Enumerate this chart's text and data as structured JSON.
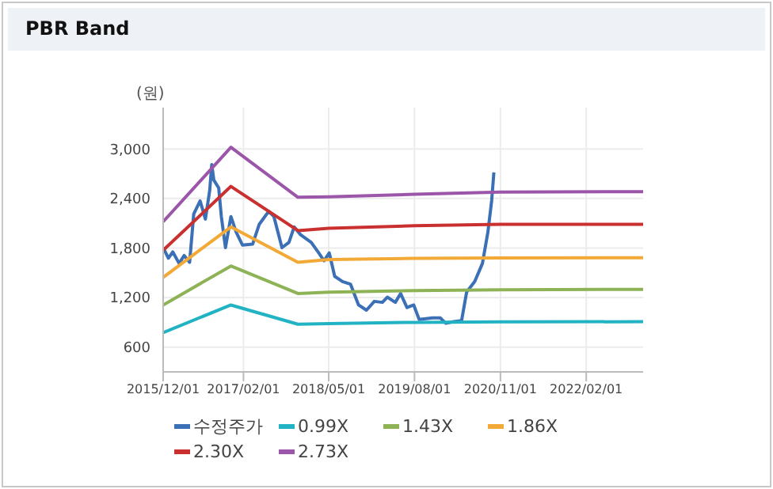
{
  "chart_data": {
    "type": "line",
    "title": "PBR Band",
    "ylabel": "(원)",
    "xlim": [
      "2015-12-01",
      "2022-12-01"
    ],
    "xticks": [
      {
        "value": "2015-12-01",
        "label": "2015/12/01"
      },
      {
        "value": "2017-02-01",
        "label": "2017/02/01"
      },
      {
        "value": "2018-05-01",
        "label": "2018/05/01"
      },
      {
        "value": "2019-08-01",
        "label": "2019/08/01"
      },
      {
        "value": "2020-11-01",
        "label": "2020/11/01"
      },
      {
        "value": "2022-02-01",
        "label": "2022/02/01"
      }
    ],
    "ylim": [
      300,
      3500
    ],
    "yticks": [
      600,
      {
        "value": 1200,
        "label": "1,200"
      },
      {
        "value": 1800,
        "label": "1,800"
      },
      {
        "value": 2400,
        "label": "2,400"
      },
      {
        "value": 3000,
        "label": "3,000"
      }
    ],
    "grid": true,
    "legend": "bottom",
    "marker": "none",
    "line_style": "solid",
    "series": [
      {
        "name": "수정주가",
        "color": "#3b6fb6",
        "x": [
          "2015-12-01",
          "2015-12-29",
          "2016-01-21",
          "2016-02-24",
          "2016-03-22",
          "2016-04-20",
          "2016-05-12",
          "2016-06-15",
          "2016-07-13",
          "2016-08-05",
          "2016-08-16",
          "2016-08-27",
          "2016-09-22",
          "2016-10-06",
          "2016-10-28",
          "2016-11-26",
          "2016-12-24",
          "2017-01-27",
          "2017-03-22",
          "2017-04-26",
          "2017-06-15",
          "2017-07-13",
          "2017-08-25",
          "2017-10-01",
          "2017-10-29",
          "2017-12-02",
          "2018-01-28",
          "2018-03-09",
          "2018-04-06",
          "2018-05-04",
          "2018-06-02",
          "2018-07-14",
          "2018-08-25",
          "2018-10-07",
          "2018-11-18",
          "2018-12-30",
          "2019-02-11",
          "2019-03-09",
          "2019-04-21",
          "2019-05-19",
          "2019-06-22",
          "2019-07-28",
          "2019-08-26",
          "2019-11-05",
          "2019-12-17",
          "2020-01-14",
          "2020-02-26",
          "2020-04-08",
          "2020-05-05",
          "2020-06-17",
          "2020-07-28",
          "2020-08-26",
          "2020-09-15",
          "2020-09-27"
        ],
        "values": [
          1804,
          1677,
          1753,
          1614,
          1709,
          1627,
          2213,
          2370,
          2150,
          2496,
          2811,
          2622,
          2527,
          2181,
          1804,
          2181,
          1992,
          1835,
          1848,
          2087,
          2244,
          2181,
          1804,
          1867,
          2055,
          1961,
          1867,
          1740,
          1646,
          1740,
          1457,
          1394,
          1363,
          1110,
          1047,
          1154,
          1142,
          1205,
          1142,
          1249,
          1079,
          1110,
          934,
          953,
          953,
          890,
          908,
          921,
          1268,
          1394,
          1614,
          1992,
          2370,
          2716
        ]
      },
      {
        "name": "0.99X",
        "color": "#21b3c3",
        "x": [
          "2015-12-01",
          "2016-11-26",
          "2017-11-18",
          "2018-05-01",
          "2019-08-01",
          "2020-11-01",
          "2022-12-01"
        ],
        "values": [
          776,
          1110,
          877,
          885,
          900,
          905,
          908
        ]
      },
      {
        "name": "1.43X",
        "color": "#8db356",
        "x": [
          "2015-12-01",
          "2016-11-26",
          "2017-11-18",
          "2018-05-01",
          "2019-08-01",
          "2020-11-01",
          "2022-12-01"
        ],
        "values": [
          1110,
          1582,
          1249,
          1265,
          1285,
          1295,
          1299
        ]
      },
      {
        "name": "1.86X",
        "color": "#f2a935",
        "x": [
          "2015-12-01",
          "2016-11-26",
          "2017-11-18",
          "2018-05-01",
          "2019-08-01",
          "2020-11-01",
          "2022-12-01"
        ],
        "values": [
          1444,
          2055,
          1627,
          1660,
          1675,
          1680,
          1683
        ]
      },
      {
        "name": "2.30X",
        "color": "#c9302f",
        "x": [
          "2015-12-01",
          "2016-11-26",
          "2017-11-18",
          "2018-05-01",
          "2019-08-01",
          "2020-11-01",
          "2022-12-01"
        ],
        "values": [
          1772,
          2546,
          2011,
          2040,
          2070,
          2087,
          2087
        ]
      },
      {
        "name": "2.73X",
        "color": "#9b56a9",
        "x": [
          "2015-12-01",
          "2016-11-26",
          "2017-11-18",
          "2018-05-01",
          "2019-08-01",
          "2020-11-01",
          "2022-12-01"
        ],
        "values": [
          2118,
          3019,
          2414,
          2420,
          2450,
          2477,
          2483
        ]
      }
    ]
  }
}
